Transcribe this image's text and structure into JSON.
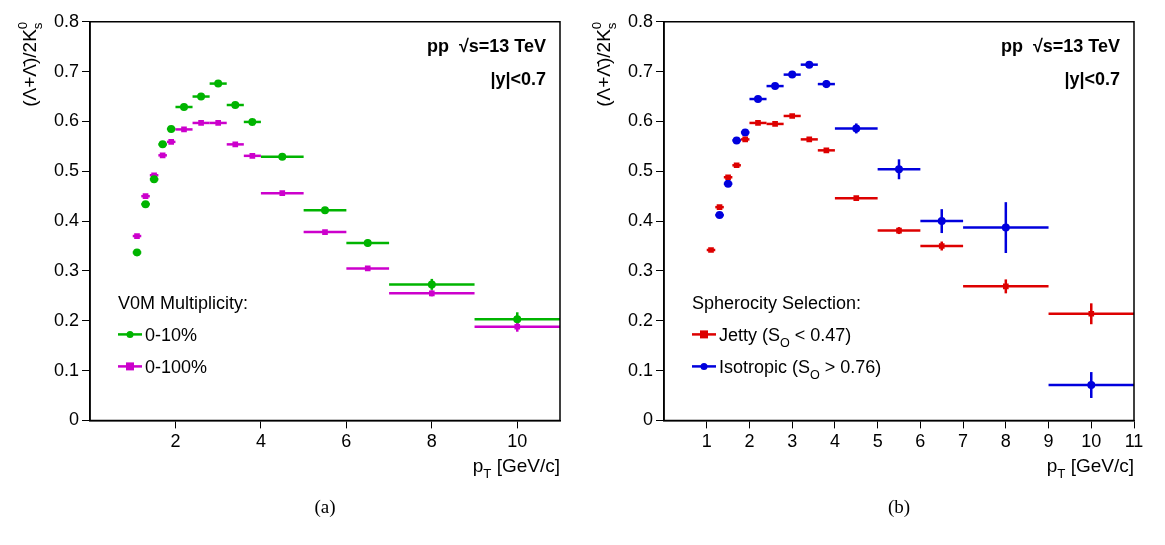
{
  "chart_data": [
    {
      "type": "scatter",
      "xlabel": "p$_{T}$ [GeV/c]",
      "ylabel": "(Λ+Λ̄)/2K$^{0}$$_{s}$",
      "xlim": [
        0,
        11
      ],
      "xticks": [
        2,
        4,
        6,
        8,
        10
      ],
      "ylim": [
        0,
        0.8
      ],
      "yticks": [
        0,
        0.1,
        0.2,
        0.3,
        0.4,
        0.5,
        0.6,
        0.7,
        0.8
      ],
      "legend": "bottom left",
      "legend_title": "V0M Multiplicity:",
      "annotations": [
        "pp  √s=13 TeV",
        "|y|<0.7",
        "(a)"
      ],
      "series": [
        {
          "name": "0-10%",
          "color": "#00b400",
          "marker": "circle",
          "x": [
            1.1,
            1.3,
            1.5,
            1.7,
            1.9,
            2.2,
            2.6,
            3.0,
            3.4,
            3.8,
            4.5,
            5.5,
            6.5,
            8,
            10
          ],
          "values": [
            0.337,
            0.434,
            0.484,
            0.554,
            0.585,
            0.629,
            0.65,
            0.676,
            0.633,
            0.599,
            0.529,
            0.422,
            0.356,
            0.273,
            0.203
          ],
          "errors": [
            null,
            null,
            null,
            null,
            null,
            null,
            null,
            null,
            null,
            null,
            null,
            null,
            0.007,
            0.011,
            0.014
          ],
          "xerrors": [
            0.1,
            0.1,
            0.1,
            0.1,
            0.1,
            0.2,
            0.2,
            0.2,
            0.2,
            0.2,
            0.5,
            0.5,
            0.5,
            1,
            1
          ]
        },
        {
          "name": "0-100%",
          "color": "#cc00cc",
          "marker": "square",
          "x": [
            1.1,
            1.3,
            1.5,
            1.7,
            1.9,
            2.2,
            2.6,
            3.0,
            3.4,
            3.8,
            4.5,
            5.5,
            6.5,
            8,
            10
          ],
          "values": [
            0.37,
            0.45,
            0.492,
            0.532,
            0.559,
            0.584,
            0.597,
            0.597,
            0.554,
            0.531,
            0.456,
            0.378,
            0.305,
            0.255,
            0.188
          ],
          "errors": [
            null,
            null,
            null,
            null,
            null,
            null,
            null,
            null,
            null,
            null,
            null,
            null,
            null,
            0.006,
            0.01
          ],
          "xerrors": [
            0.1,
            0.1,
            0.1,
            0.1,
            0.1,
            0.2,
            0.2,
            0.2,
            0.2,
            0.2,
            0.5,
            0.5,
            0.5,
            1,
            1
          ]
        }
      ]
    },
    {
      "type": "scatter",
      "xlabel": "p$_{T}$ [GeV/c]",
      "ylabel": "(Λ+Λ̄)/2K$^{0}$$_{s}$",
      "xlim": [
        0,
        11
      ],
      "xticks": [
        1,
        2,
        3,
        4,
        5,
        6,
        7,
        8,
        9,
        10,
        11
      ],
      "ylim": [
        0,
        0.8
      ],
      "yticks": [
        0,
        0.1,
        0.2,
        0.3,
        0.4,
        0.5,
        0.6,
        0.7,
        0.8
      ],
      "legend": "bottom left",
      "legend_title": "Spherocity Selection:",
      "annotations": [
        "pp  √s=13 TeV",
        "|y|<0.7",
        "(b)"
      ],
      "series": [
        {
          "name": "Jetty (S$_{O}$ < 0.47)",
          "color": "#dd0000",
          "marker": "square",
          "x": [
            1.1,
            1.3,
            1.5,
            1.7,
            1.9,
            2.2,
            2.6,
            3.0,
            3.4,
            3.8,
            4.5,
            5.5,
            6.5,
            8,
            10
          ],
          "values": [
            0.342,
            0.428,
            0.488,
            0.512,
            0.564,
            0.597,
            0.595,
            0.611,
            0.564,
            0.542,
            0.446,
            0.381,
            0.35,
            0.269,
            0.214
          ],
          "errors": [
            null,
            null,
            null,
            null,
            null,
            null,
            null,
            null,
            null,
            null,
            null,
            0.007,
            0.009,
            0.014,
            0.021
          ],
          "xerrors": [
            0.1,
            0.1,
            0.1,
            0.1,
            0.1,
            0.2,
            0.2,
            0.2,
            0.2,
            0.2,
            0.5,
            0.5,
            0.5,
            1,
            1
          ]
        },
        {
          "name": "Isotropic (S$_{O}$ > 0.76)",
          "color": "#0000dd",
          "marker": "circle",
          "x": [
            1.3,
            1.5,
            1.7,
            1.9,
            2.2,
            2.6,
            3.0,
            3.4,
            3.8,
            4.5,
            5.5,
            6.5,
            8,
            10
          ],
          "values": [
            0.412,
            0.475,
            0.562,
            0.578,
            0.645,
            0.671,
            0.694,
            0.714,
            0.675,
            0.586,
            0.504,
            0.4,
            0.387,
            0.071
          ],
          "errors": [
            null,
            null,
            null,
            null,
            null,
            null,
            null,
            null,
            0.008,
            0.01,
            0.02,
            0.024,
            0.051,
            0.026
          ],
          "xerrors": [
            0.1,
            0.1,
            0.1,
            0.1,
            0.2,
            0.2,
            0.2,
            0.2,
            0.2,
            0.5,
            0.5,
            0.5,
            1,
            1
          ]
        }
      ]
    }
  ]
}
